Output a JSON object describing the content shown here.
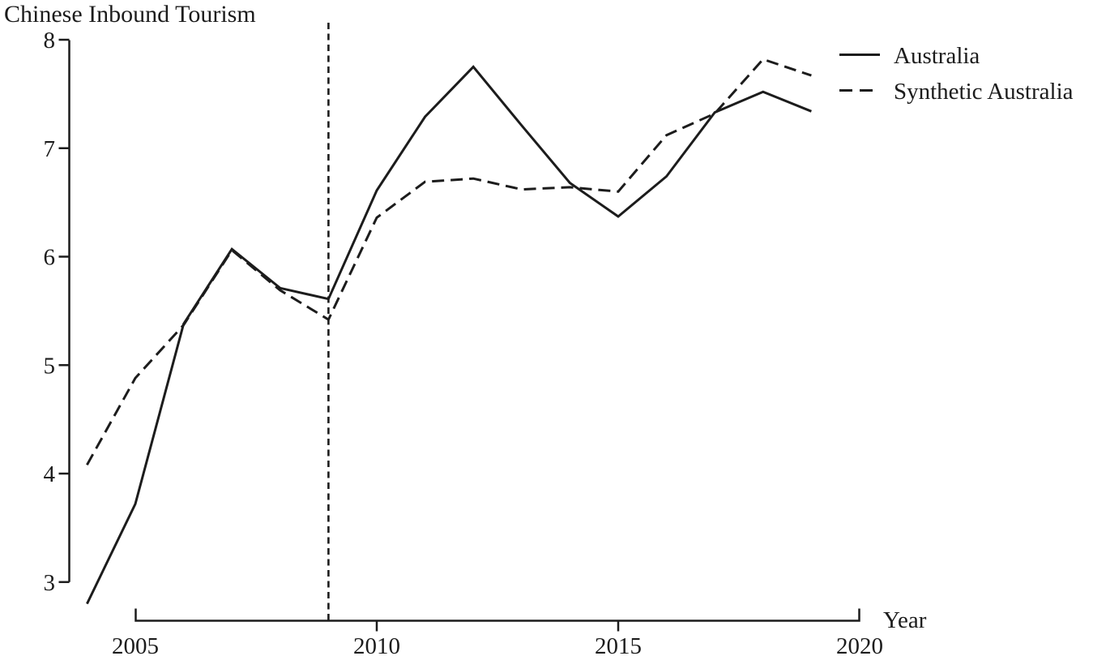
{
  "title": "Chinese Inbound Tourism",
  "chart_data": {
    "type": "line",
    "title": "Chinese Inbound Tourism",
    "xlabel": "Year",
    "ylabel": "",
    "x": [
      2004,
      2005,
      2006,
      2007,
      2008,
      2009,
      2010,
      2011,
      2012,
      2013,
      2014,
      2015,
      2016,
      2017,
      2018,
      2019
    ],
    "series": [
      {
        "name": "Australia",
        "style": "solid",
        "values": [
          2.8,
          3.72,
          5.38,
          6.07,
          5.71,
          5.61,
          6.61,
          7.29,
          7.75,
          7.21,
          6.68,
          6.37,
          6.74,
          7.33,
          7.52,
          7.34
        ]
      },
      {
        "name": "Synthetic Australia",
        "style": "dashed",
        "values": [
          4.08,
          4.88,
          5.37,
          6.06,
          5.69,
          5.42,
          6.36,
          6.69,
          6.72,
          6.62,
          6.64,
          6.6,
          7.12,
          7.32,
          7.82,
          7.67
        ]
      }
    ],
    "x_ticks": [
      2005,
      2010,
      2015,
      2020
    ],
    "y_ticks": [
      3,
      4,
      5,
      6,
      7,
      8
    ],
    "xlim": [
      2004,
      2020
    ],
    "ylim": [
      3,
      8
    ],
    "vline_x": 2009,
    "grid": false,
    "legend_position": "top-right",
    "line_color": "#1c1c1c"
  },
  "legend": {
    "items": [
      {
        "label": "Australia",
        "line": "solid"
      },
      {
        "label": "Synthetic Australia",
        "line": "dashed"
      }
    ]
  }
}
